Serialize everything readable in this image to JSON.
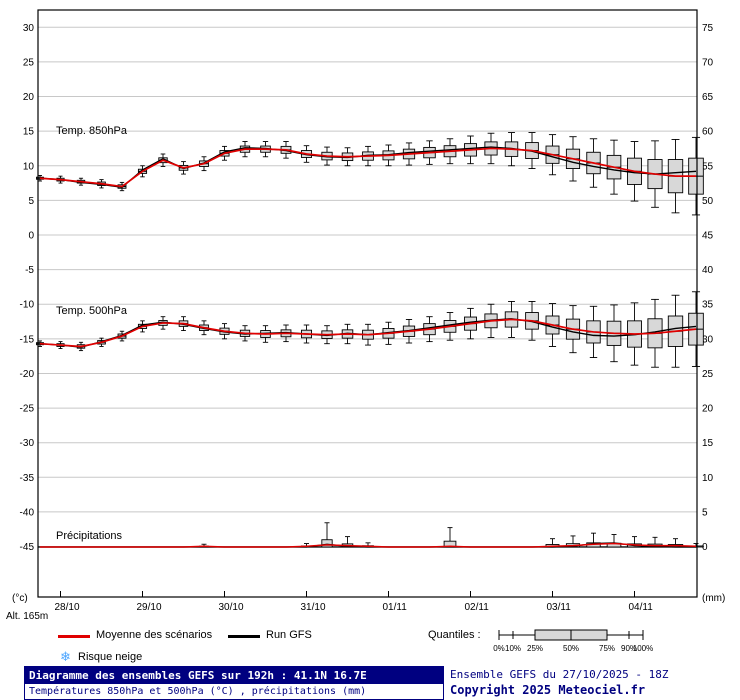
{
  "axes": {
    "left_unit": "(°c)",
    "right_unit": "(mm)",
    "left_ticks": [
      30,
      25,
      20,
      15,
      10,
      5,
      0,
      -5,
      -10,
      -15,
      -20,
      -25,
      -30,
      -35,
      -40,
      -45
    ],
    "right_ticks": [
      75,
      70,
      65,
      60,
      55,
      50,
      45,
      40,
      35,
      30,
      25,
      20,
      15,
      10,
      5,
      0
    ],
    "date_labels": [
      "28/10",
      "29/10",
      "30/10",
      "31/10",
      "01/11",
      "02/11",
      "03/11",
      "04/11"
    ]
  },
  "panel_labels": {
    "t850": "Temp. 850hPa",
    "t500": "Temp. 500hPa",
    "precip": "Précipitations"
  },
  "legend": {
    "altitude": "Alt. 165m",
    "mean_label": "Moyenne des scénarios",
    "run_label": "Run GFS",
    "quantiles_label": "Quantiles :",
    "quantile_ticks": [
      "0%",
      "10%",
      "25%",
      "50%",
      "75%",
      "90%",
      "100%"
    ],
    "snow_label": "Risque neige"
  },
  "footer": {
    "title": "Diagramme des ensembles GEFS sur 192h : 41.1N 16.7E",
    "subtitle": "Températures 850hPa et 500hPa (°C) , précipitations (mm)",
    "run_info": "Ensemble GEFS du 27/10/2025 - 18Z",
    "copyright": "Copyright 2025 Meteociel.fr"
  },
  "colors": {
    "mean": "#e00000",
    "run": "#000000",
    "box_fill": "#d8d8d8",
    "grid": "#c8c8c8",
    "navy": "#000080",
    "snow": "#4da6ff"
  },
  "chart_data": {
    "type": "bar",
    "subtype": "ensemble-box-whisker-meteogram",
    "title": "Diagramme des ensembles GEFS sur 192h : 41.1N 16.7E",
    "run": "GEFS 27/10/2025 18Z",
    "location": "41.1N 16.7E",
    "altitude_m": 165,
    "time_step_hours": 6,
    "forecast_length_hours": 192,
    "temp_axis_range_c": [
      -45,
      30
    ],
    "precip_axis_range_mm": [
      0,
      75
    ],
    "grid": true,
    "series": {
      "t850_mean": [
        8.2,
        8.0,
        7.7,
        7.4,
        7.0,
        9.2,
        10.8,
        9.7,
        10.3,
        11.8,
        12.4,
        12.4,
        12.3,
        11.7,
        11.4,
        11.3,
        11.4,
        11.5,
        11.7,
        11.9,
        12.1,
        12.3,
        12.5,
        12.4,
        12.2,
        11.6,
        11.0,
        10.4,
        9.8,
        9.2,
        8.8,
        8.5,
        8.5
      ],
      "t850_run": [
        8.2,
        8.0,
        7.6,
        7.3,
        6.9,
        9.4,
        11.0,
        9.6,
        10.4,
        12.0,
        12.6,
        12.5,
        12.2,
        11.6,
        11.3,
        11.2,
        11.5,
        11.6,
        11.9,
        12.1,
        12.3,
        12.5,
        12.7,
        12.5,
        12.1,
        11.3,
        10.5,
        9.9,
        9.4,
        9.0,
        8.8,
        9.0,
        9.2
      ],
      "t850_box_half": [
        0.15,
        0.2,
        0.2,
        0.25,
        0.25,
        0.3,
        0.35,
        0.35,
        0.4,
        0.4,
        0.45,
        0.45,
        0.5,
        0.5,
        0.55,
        0.55,
        0.6,
        0.65,
        0.7,
        0.75,
        0.8,
        0.9,
        0.95,
        1.05,
        1.15,
        1.25,
        1.4,
        1.55,
        1.7,
        1.9,
        2.1,
        2.4,
        2.6
      ],
      "t850_whisker_half": [
        0.4,
        0.5,
        0.5,
        0.6,
        0.6,
        0.8,
        0.9,
        0.9,
        1.0,
        1.0,
        1.1,
        1.1,
        1.2,
        1.2,
        1.3,
        1.3,
        1.4,
        1.5,
        1.6,
        1.7,
        1.8,
        2.0,
        2.2,
        2.4,
        2.6,
        2.9,
        3.2,
        3.5,
        3.9,
        4.3,
        4.8,
        5.3,
        5.6
      ],
      "t500_mean": [
        -15.7,
        -15.9,
        -16.1,
        -15.5,
        -14.6,
        -13.2,
        -12.7,
        -12.8,
        -13.4,
        -13.9,
        -14.2,
        -14.3,
        -14.2,
        -14.3,
        -14.4,
        -14.3,
        -14.4,
        -14.2,
        -13.9,
        -13.6,
        -13.2,
        -12.8,
        -12.4,
        -12.2,
        -12.4,
        -13.0,
        -13.6,
        -14.0,
        -14.2,
        -14.3,
        -14.2,
        -13.9,
        -13.6
      ],
      "t500_run": [
        -15.7,
        -15.9,
        -16.2,
        -15.4,
        -14.5,
        -13.0,
        -12.6,
        -12.9,
        -13.5,
        -14.0,
        -14.3,
        -14.2,
        -14.1,
        -14.3,
        -14.5,
        -14.2,
        -14.4,
        -14.1,
        -13.8,
        -13.4,
        -13.0,
        -12.6,
        -12.3,
        -12.1,
        -12.5,
        -13.3,
        -14.0,
        -14.5,
        -14.6,
        -14.4,
        -14.0,
        -13.5,
        -13.2
      ],
      "t500_box_half": [
        0.15,
        0.2,
        0.25,
        0.25,
        0.3,
        0.3,
        0.35,
        0.4,
        0.4,
        0.45,
        0.45,
        0.5,
        0.5,
        0.55,
        0.55,
        0.6,
        0.65,
        0.7,
        0.75,
        0.8,
        0.85,
        0.95,
        1.0,
        1.1,
        1.2,
        1.3,
        1.45,
        1.6,
        1.75,
        1.9,
        2.1,
        2.2,
        2.3
      ],
      "t500_whisker_half": [
        0.4,
        0.5,
        0.6,
        0.6,
        0.7,
        0.8,
        0.9,
        1.0,
        1.0,
        1.1,
        1.1,
        1.2,
        1.2,
        1.3,
        1.3,
        1.4,
        1.5,
        1.6,
        1.7,
        1.8,
        2.0,
        2.2,
        2.4,
        2.6,
        2.8,
        3.1,
        3.4,
        3.7,
        4.1,
        4.5,
        4.9,
        5.2,
        5.4
      ],
      "precip_mean": [
        0,
        0,
        0,
        0,
        0,
        0,
        0,
        0,
        0.1,
        0,
        0,
        0,
        0,
        0.1,
        0.3,
        0.2,
        0.1,
        0,
        0,
        0,
        0.1,
        0,
        0,
        0,
        0,
        0.1,
        0.2,
        0.4,
        0.5,
        0.3,
        0.2,
        0.2,
        0.1
      ],
      "precip_run": [
        0,
        0,
        0,
        0,
        0,
        0,
        0,
        0,
        0,
        0,
        0,
        0,
        0,
        0,
        0.4,
        0.1,
        0,
        0,
        0,
        0,
        0,
        0,
        0,
        0,
        0,
        0,
        0.1,
        0.5,
        0.6,
        0.2,
        0.1,
        0,
        0
      ],
      "precip_max": [
        0,
        0,
        0,
        0,
        0,
        0,
        0,
        0,
        0.4,
        0,
        0,
        0,
        0,
        0.5,
        3.5,
        1.5,
        0.6,
        0,
        0,
        0,
        2.8,
        0,
        0,
        0,
        0,
        1.2,
        1.6,
        2.0,
        1.8,
        1.5,
        1.4,
        1.2,
        0.5
      ]
    }
  }
}
